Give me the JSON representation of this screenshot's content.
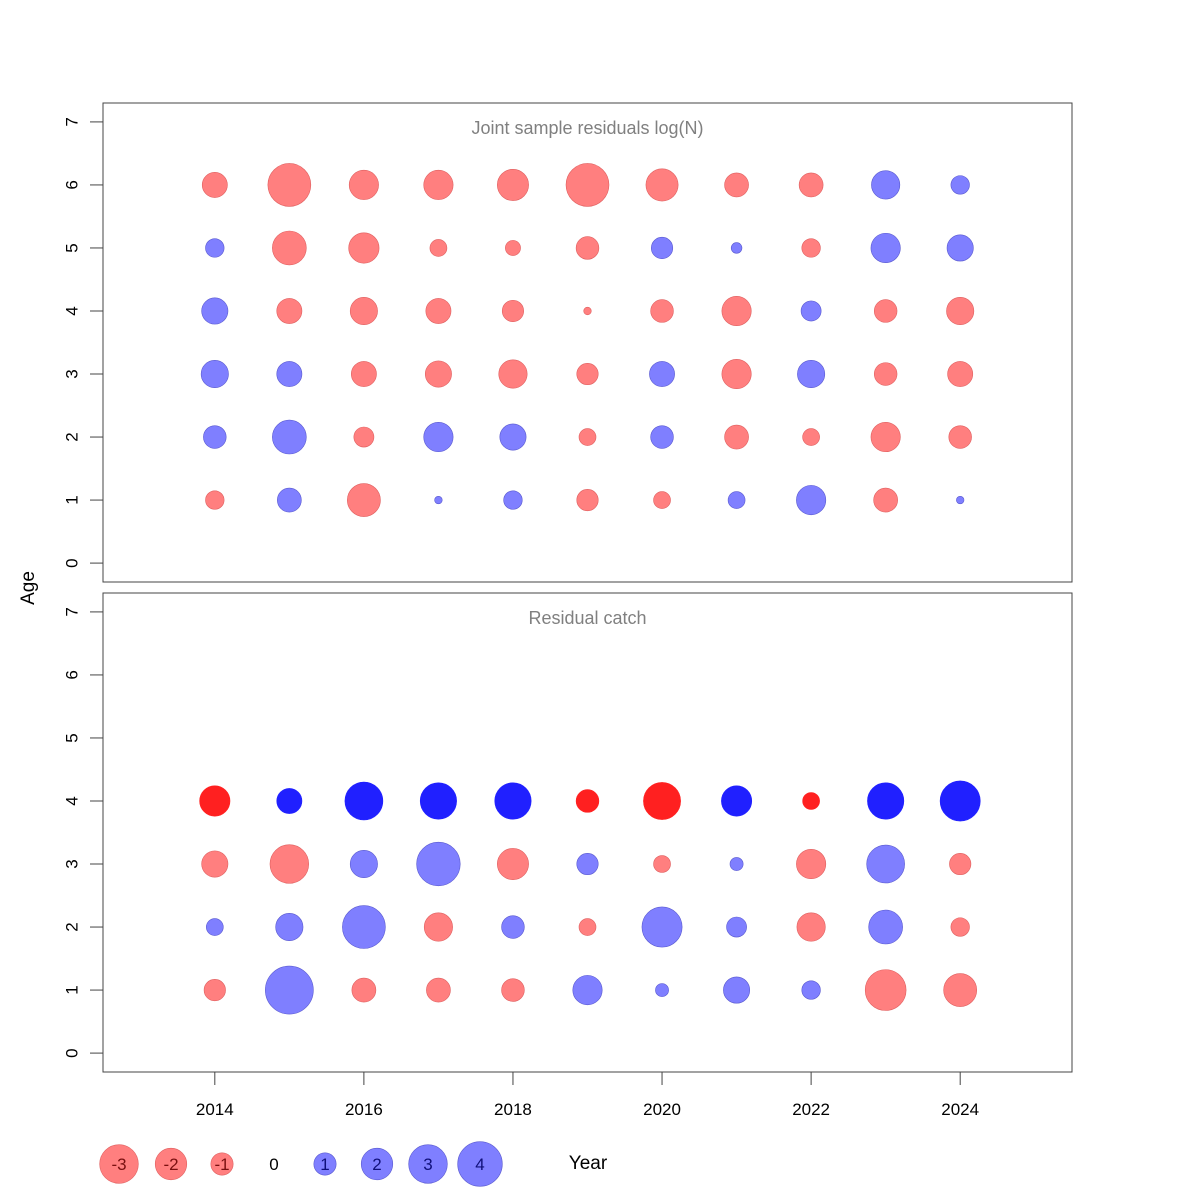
{
  "colors": {
    "negative_light": "#ff7f7f",
    "negative_dark": "#ff2020",
    "positive_light": "#7f7fff",
    "positive_dark": "#2020ff",
    "neg_edge_light": "#e06060",
    "pos_edge_light": "#5a5ad0",
    "panel_title": "#808080",
    "axis": "#444444"
  },
  "axis": {
    "xlabel": "Year",
    "ylabel": "Age",
    "x_ticks": [
      "2014",
      "2016",
      "2018",
      "2020",
      "2022",
      "2024"
    ],
    "y_ticks": [
      "0",
      "1",
      "2",
      "3",
      "4",
      "5",
      "6",
      "7"
    ]
  },
  "legend": {
    "items": [
      {
        "label": "-3",
        "value": -3
      },
      {
        "label": "-2",
        "value": -2
      },
      {
        "label": "-1",
        "value": -1
      },
      {
        "label": "0",
        "value": 0
      },
      {
        "label": "1",
        "value": 1
      },
      {
        "label": "2",
        "value": 2
      },
      {
        "label": "3",
        "value": 3
      },
      {
        "label": "4",
        "value": 4
      }
    ]
  },
  "chart_data": [
    {
      "type": "bubble",
      "title": "Joint sample residuals log(N)",
      "xlabel": "Year",
      "ylabel": "Age",
      "xlim": [
        2012.5,
        2025.5
      ],
      "ylim": [
        -0.3,
        7.3
      ],
      "years": [
        2014,
        2015,
        2016,
        2017,
        2018,
        2019,
        2020,
        2021,
        2022,
        2023,
        2024
      ],
      "ages": [
        1,
        2,
        3,
        4,
        5,
        6
      ],
      "style": "light",
      "residuals": {
        "1": [
          -0.6,
          1.0,
          -1.9,
          0.1,
          0.6,
          -0.8,
          -0.5,
          0.5,
          1.5,
          -1.0,
          0.1
        ],
        "2": [
          0.9,
          2.0,
          -0.7,
          1.5,
          1.2,
          -0.5,
          0.9,
          -1.0,
          -0.5,
          -1.5,
          -0.9
        ],
        "3": [
          1.3,
          1.1,
          -1.1,
          -1.2,
          -1.4,
          -0.8,
          1.1,
          -1.5,
          1.3,
          -0.9,
          -1.1
        ],
        "4": [
          1.2,
          -1.1,
          -1.3,
          -1.1,
          -0.8,
          -0.1,
          -0.9,
          -1.5,
          0.7,
          -0.9,
          -1.3
        ],
        "5": [
          0.6,
          -2.0,
          -1.6,
          -0.5,
          -0.4,
          -0.9,
          0.8,
          0.2,
          -0.6,
          1.5,
          1.2
        ],
        "6": [
          -1.1,
          -3.2,
          -1.5,
          -1.5,
          -1.7,
          -3.2,
          -1.8,
          -1.0,
          -1.0,
          1.4,
          0.6
        ]
      }
    },
    {
      "type": "bubble",
      "title": "Residual catch",
      "xlabel": "Year",
      "ylabel": "Age",
      "xlim": [
        2012.5,
        2025.5
      ],
      "ylim": [
        -0.3,
        7.3
      ],
      "years": [
        2014,
        2015,
        2016,
        2017,
        2018,
        2019,
        2020,
        2021,
        2022,
        2023,
        2024
      ],
      "ages": [
        1,
        2,
        3,
        4
      ],
      "style": "light_with_dark_top_row",
      "residuals": {
        "1": [
          -0.8,
          4.0,
          -1.0,
          -1.0,
          -0.9,
          1.5,
          0.3,
          1.2,
          0.6,
          -2.9,
          -1.9
        ],
        "2": [
          0.5,
          1.3,
          3.2,
          -1.4,
          0.9,
          -0.5,
          2.8,
          0.7,
          -1.4,
          2.0,
          -0.6
        ],
        "3": [
          -1.2,
          -2.6,
          1.3,
          3.3,
          -1.7,
          0.8,
          -0.5,
          0.3,
          -1.5,
          2.5,
          -0.8
        ],
        "4": [
          -1.6,
          1.1,
          2.5,
          2.3,
          2.3,
          -0.9,
          -2.4,
          1.6,
          -0.5,
          2.3,
          2.8
        ]
      }
    }
  ]
}
